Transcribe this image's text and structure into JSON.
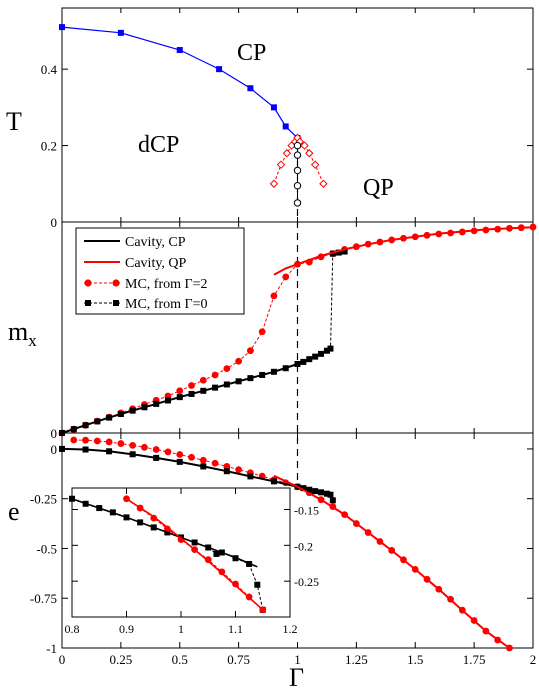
{
  "chart_data": [
    {
      "panel": "top",
      "type": "line",
      "ylabel": "T",
      "xlim": [
        0,
        2
      ],
      "ylim": [
        0,
        0.56
      ],
      "yticks": [
        0,
        0.2,
        0.4
      ],
      "ytick_labels": [
        "0",
        "0.2",
        "0.4"
      ],
      "annotations": [
        "CP",
        "dCP",
        "QP"
      ],
      "colors": {
        "blue": "#0000ff",
        "red": "#ff0000",
        "black": "#000000"
      },
      "series": [
        {
          "style": "blue line, square markers",
          "x": [
            0.0,
            0.25,
            0.5,
            0.667,
            0.8,
            0.9,
            0.95,
            1.0
          ],
          "y": [
            0.51,
            0.495,
            0.45,
            0.4,
            0.35,
            0.3,
            0.25,
            0.22
          ]
        },
        {
          "style": "red dashed, open diamonds (left branch)",
          "x": [
            0.9,
            0.93,
            0.955,
            0.975,
            0.99,
            1.0
          ],
          "y": [
            0.1,
            0.15,
            0.18,
            0.2,
            0.21,
            0.22
          ]
        },
        {
          "style": "red dashed, open diamonds (right branch)",
          "x": [
            1.0,
            1.01,
            1.03,
            1.05,
            1.075,
            1.11
          ],
          "y": [
            0.22,
            0.21,
            0.2,
            0.18,
            0.15,
            0.1
          ]
        },
        {
          "style": "black line, open circles",
          "x": [
            1.0,
            1.0,
            1.0,
            1.0,
            1.0
          ],
          "y": [
            0.2,
            0.175,
            0.135,
            0.095,
            0.05
          ]
        }
      ]
    },
    {
      "panel": "middle",
      "type": "line",
      "ylabel": "m",
      "ylabel_sub": "x",
      "xlim": [
        0,
        2
      ],
      "ylim": [
        0,
        1
      ],
      "yticks": [
        0
      ],
      "ytick_labels": [
        "0"
      ],
      "legend": [
        "Cavity, CP",
        "Cavity, QP",
        "MC, from Γ=2",
        "MC, from Γ=0"
      ],
      "legend_position": "top-left",
      "series": [
        {
          "name": "Cavity, CP",
          "color": "#000000",
          "x": [
            0.0,
            0.1,
            0.2,
            0.3,
            0.4,
            0.5,
            0.6,
            0.7,
            0.8,
            0.9,
            1.0,
            1.05,
            1.1,
            1.14
          ],
          "y": [
            0.0,
            0.037,
            0.073,
            0.106,
            0.138,
            0.17,
            0.2,
            0.23,
            0.26,
            0.29,
            0.327,
            0.35,
            0.375,
            0.4
          ]
        },
        {
          "name": "Cavity, QP",
          "color": "#ff0000",
          "x": [
            0.9,
            0.95,
            1.0,
            1.05,
            1.1,
            1.2,
            1.3,
            1.4,
            1.5,
            1.6,
            1.7,
            1.8,
            1.9,
            2.0
          ],
          "y": [
            0.75,
            0.78,
            0.8,
            0.82,
            0.84,
            0.87,
            0.895,
            0.915,
            0.93,
            0.945,
            0.955,
            0.965,
            0.97,
            0.975
          ]
        },
        {
          "name": "MC, from Γ=2",
          "color": "#ff0000",
          "x": [
            0.0,
            0.05,
            0.1,
            0.15,
            0.2,
            0.25,
            0.3,
            0.35,
            0.4,
            0.45,
            0.5,
            0.55,
            0.6,
            0.65,
            0.7,
            0.75,
            0.8,
            0.85,
            0.9,
            0.95,
            1.0,
            1.05,
            1.1,
            1.15,
            1.2,
            1.25,
            1.3,
            1.35,
            1.4,
            1.45,
            1.5,
            1.55,
            1.6,
            1.65,
            1.7,
            1.75,
            1.8,
            1.85,
            1.9,
            1.95,
            2.0
          ],
          "y": [
            0.0,
            0.018,
            0.037,
            0.056,
            0.075,
            0.095,
            0.115,
            0.135,
            0.155,
            0.175,
            0.2,
            0.225,
            0.25,
            0.275,
            0.305,
            0.34,
            0.39,
            0.48,
            0.65,
            0.74,
            0.8,
            0.81,
            0.835,
            0.85,
            0.87,
            0.883,
            0.895,
            0.905,
            0.915,
            0.923,
            0.93,
            0.937,
            0.943,
            0.948,
            0.953,
            0.958,
            0.962,
            0.966,
            0.97,
            0.973,
            0.976
          ]
        },
        {
          "name": "MC, from Γ=0",
          "color": "#000000",
          "x": [
            0.0,
            0.05,
            0.1,
            0.15,
            0.2,
            0.25,
            0.3,
            0.35,
            0.4,
            0.45,
            0.5,
            0.55,
            0.6,
            0.65,
            0.7,
            0.75,
            0.8,
            0.85,
            0.9,
            0.95,
            1.0,
            1.025,
            1.05,
            1.075,
            1.1,
            1.125,
            1.14,
            1.15,
            1.175,
            1.2
          ],
          "y": [
            0.0,
            0.018,
            0.037,
            0.055,
            0.073,
            0.09,
            0.106,
            0.122,
            0.138,
            0.154,
            0.17,
            0.185,
            0.2,
            0.215,
            0.23,
            0.245,
            0.26,
            0.275,
            0.29,
            0.307,
            0.327,
            0.337,
            0.35,
            0.362,
            0.375,
            0.39,
            0.4,
            0.85,
            0.855,
            0.86
          ]
        }
      ]
    },
    {
      "panel": "bottom",
      "type": "line",
      "ylabel": "e",
      "xlabel": "Γ",
      "xlim": [
        0,
        2
      ],
      "ylim": [
        -1,
        0.08
      ],
      "xticks": [
        0,
        0.25,
        0.5,
        0.75,
        1,
        1.25,
        1.5,
        1.75,
        2
      ],
      "xtick_labels": [
        "0",
        "0.25",
        "0.5",
        "0.75",
        "1",
        "1.25",
        "1.5",
        "1.75",
        "2"
      ],
      "yticks": [
        -1,
        -0.75,
        -0.5,
        -0.25,
        0
      ],
      "ytick_labels": [
        "-1",
        "-0.75",
        "-0.5",
        "-0.25",
        "0"
      ],
      "series": [
        {
          "name": "Cavity, CP",
          "color": "#000000",
          "x": [
            0.0,
            0.1,
            0.2,
            0.3,
            0.4,
            0.5,
            0.6,
            0.7,
            0.8,
            0.9,
            1.0,
            1.05,
            1.1,
            1.14
          ],
          "y": [
            0.0,
            -0.003,
            -0.012,
            -0.027,
            -0.045,
            -0.065,
            -0.088,
            -0.112,
            -0.138,
            -0.163,
            -0.19,
            -0.205,
            -0.218,
            -0.23
          ]
        },
        {
          "name": "Cavity, QP",
          "color": "#ff0000",
          "x": [
            0.9,
            1.0,
            1.1,
            1.2,
            1.3,
            1.4,
            1.5,
            1.6,
            1.7,
            1.8,
            1.9
          ],
          "y": [
            -0.135,
            -0.19,
            -0.255,
            -0.33,
            -0.42,
            -0.51,
            -0.605,
            -0.705,
            -0.81,
            -0.915,
            -1.0
          ]
        },
        {
          "name": "MC, from Γ=2",
          "color": "#ff0000",
          "x": [
            0.05,
            0.1,
            0.15,
            0.2,
            0.25,
            0.3,
            0.35,
            0.4,
            0.45,
            0.5,
            0.55,
            0.6,
            0.65,
            0.7,
            0.75,
            0.8,
            0.85,
            0.9,
            0.95,
            1.0,
            1.05,
            1.1,
            1.15,
            1.2,
            1.25,
            1.3,
            1.35,
            1.4,
            1.45,
            1.5,
            1.55,
            1.6,
            1.65,
            1.7,
            1.75,
            1.8,
            1.85,
            1.9
          ],
          "y": [
            0.045,
            0.044,
            0.04,
            0.035,
            0.027,
            0.018,
            0.008,
            -0.003,
            -0.015,
            -0.028,
            -0.042,
            -0.057,
            -0.072,
            -0.088,
            -0.104,
            -0.12,
            -0.137,
            -0.155,
            -0.17,
            -0.19,
            -0.22,
            -0.255,
            -0.29,
            -0.33,
            -0.375,
            -0.42,
            -0.465,
            -0.51,
            -0.557,
            -0.605,
            -0.655,
            -0.705,
            -0.755,
            -0.81,
            -0.862,
            -0.915,
            -0.96,
            -1.0
          ]
        },
        {
          "name": "MC, from Γ=0",
          "color": "#000000",
          "x": [
            0.0,
            0.1,
            0.2,
            0.3,
            0.4,
            0.5,
            0.6,
            0.7,
            0.8,
            0.9,
            1.0,
            1.025,
            1.05,
            1.075,
            1.1,
            1.125,
            1.14,
            1.15
          ],
          "y": [
            0.0,
            -0.003,
            -0.012,
            -0.027,
            -0.045,
            -0.065,
            -0.088,
            -0.112,
            -0.138,
            -0.163,
            -0.19,
            -0.197,
            -0.205,
            -0.212,
            -0.218,
            -0.225,
            -0.23,
            -0.258
          ]
        }
      ]
    },
    {
      "panel": "inset",
      "type": "line",
      "xlim": [
        0.8,
        1.2
      ],
      "ylim": [
        -0.3,
        -0.12
      ],
      "xticks": [
        0.8,
        0.9,
        1,
        1.1,
        1.2
      ],
      "xtick_labels": [
        "0.8",
        "0.9",
        "1",
        "1.1",
        "1.2"
      ],
      "yticks": [
        -0.15,
        -0.2,
        -0.25
      ],
      "ytick_labels": [
        "-0.15",
        "-0.2",
        "-0.25"
      ],
      "series": [
        {
          "name": "Cavity, CP",
          "color": "#000000",
          "x": [
            0.8,
            0.85,
            0.9,
            0.95,
            1.0,
            1.05,
            1.1,
            1.14
          ],
          "y": [
            -0.135,
            -0.148,
            -0.161,
            -0.175,
            -0.189,
            -0.203,
            -0.217,
            -0.23
          ]
        },
        {
          "name": "Cavity, QP",
          "color": "#ff0000",
          "x": [
            0.9,
            0.95,
            1.0,
            1.05,
            1.1,
            1.15
          ],
          "y": [
            -0.135,
            -0.16,
            -0.19,
            -0.222,
            -0.256,
            -0.29
          ]
        },
        {
          "name": "MC, from Γ=2",
          "color": "#ff0000",
          "x": [
            0.9,
            0.925,
            0.95,
            0.975,
            1.0,
            1.025,
            1.05,
            1.075,
            1.1,
            1.125,
            1.15
          ],
          "y": [
            -0.135,
            -0.148,
            -0.162,
            -0.177,
            -0.192,
            -0.206,
            -0.22,
            -0.237,
            -0.254,
            -0.272,
            -0.29
          ]
        },
        {
          "name": "MC, from Γ=0",
          "color": "#000000",
          "x": [
            0.8,
            0.825,
            0.85,
            0.875,
            0.9,
            0.925,
            0.95,
            0.975,
            1.0,
            1.025,
            1.05,
            1.065,
            1.075,
            1.1,
            1.125,
            1.14,
            1.15
          ],
          "y": [
            -0.135,
            -0.142,
            -0.148,
            -0.154,
            -0.161,
            -0.168,
            -0.175,
            -0.182,
            -0.189,
            -0.196,
            -0.203,
            -0.212,
            -0.21,
            -0.218,
            -0.226,
            -0.255,
            -0.29
          ]
        }
      ]
    }
  ]
}
